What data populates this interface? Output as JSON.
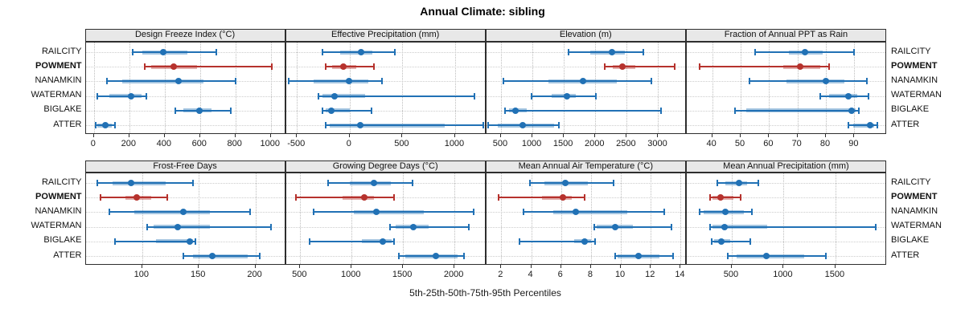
{
  "meta": {
    "title": "Annual Climate: sibling",
    "xlabel": "5th-25th-50th-75th-95th Percentiles"
  },
  "colors": {
    "blue": "#2171b5",
    "blue_band": "rgba(33,113,181,0.40)",
    "red": "#b6322d",
    "red_band": "rgba(182,50,45,0.40)"
  },
  "sites": [
    "RAILCITY",
    "POWMENT",
    "NANAMKIN",
    "WATERMAN",
    "BIGLAKE",
    "ATTER"
  ],
  "highlight_site": "POWMENT",
  "percentile_labels": [
    "5th",
    "25th",
    "50th",
    "75th",
    "95th"
  ],
  "chart_data": {
    "type": "dotplot",
    "title": "Annual Climate: sibling",
    "xlabel": "5th-25th-50th-75th-95th Percentiles",
    "legend_position": "none",
    "grid": "dotted",
    "categories": [
      "RAILCITY",
      "POWMENT",
      "NANAMKIN",
      "WATERMAN",
      "BIGLAKE",
      "ATTER"
    ],
    "panels": [
      {
        "title": "Design Freeze Index (°C)",
        "row": 0,
        "col": 0,
        "xlim": [
          -47,
          1086
        ],
        "ticks": [
          0,
          200,
          400,
          600,
          800,
          1000
        ],
        "values": {
          "RAILCITY": [
            220,
            275,
            390,
            530,
            690
          ],
          "POWMENT": [
            285,
            325,
            450,
            585,
            1005
          ],
          "NANAMKIN": [
            75,
            160,
            480,
            620,
            800
          ],
          "WATERMAN": [
            18,
            86,
            210,
            268,
            295
          ],
          "BIGLAKE": [
            460,
            505,
            595,
            665,
            775
          ],
          "ATTER": [
            10,
            18,
            63,
            101,
            121
          ]
        }
      },
      {
        "title": "Effective Precipitation (mm)",
        "row": 0,
        "col": 1,
        "xlim": [
          -604,
          1296
        ],
        "ticks": [
          -500,
          0,
          500,
          1000
        ],
        "values": {
          "RAILCITY": [
            -255,
            -90,
            110,
            215,
            430
          ],
          "POWMENT": [
            -225,
            -165,
            -60,
            65,
            230
          ],
          "NANAMKIN": [
            -580,
            -345,
            -10,
            180,
            310
          ],
          "WATERMAN": [
            -295,
            -255,
            -140,
            150,
            1180
          ],
          "BIGLAKE": [
            -255,
            -230,
            -175,
            0,
            210
          ],
          "ATTER": [
            -230,
            -190,
            100,
            900,
            1270
          ]
        }
      },
      {
        "title": "Elevation (m)",
        "row": 0,
        "col": 2,
        "xlim": [
          267,
          3453
        ],
        "ticks": [
          500,
          1000,
          1500,
          2000,
          2500,
          3000
        ],
        "values": {
          "RAILCITY": [
            1580,
            1920,
            2260,
            2465,
            2765
          ],
          "POWMENT": [
            2155,
            2280,
            2430,
            2640,
            3265
          ],
          "NANAMKIN": [
            540,
            1250,
            1800,
            2340,
            2890
          ],
          "WATERMAN": [
            990,
            1310,
            1545,
            1695,
            2015
          ],
          "BIGLAKE": [
            565,
            630,
            735,
            905,
            3040
          ],
          "ATTER": [
            300,
            455,
            840,
            1350,
            1420
          ]
        }
      },
      {
        "title": "Fraction of Annual PPT as Rain",
        "row": 0,
        "col": 3,
        "xlim": [
          31,
          101.5
        ],
        "ticks": [
          40,
          50,
          60,
          70,
          80,
          90
        ],
        "values": {
          "RAILCITY": [
            55,
            67,
            72.5,
            79,
            90
          ],
          "POWMENT": [
            35.5,
            65,
            71,
            78,
            81
          ],
          "NANAMKIN": [
            53,
            66,
            80,
            86.5,
            94.5
          ],
          "WATERMAN": [
            78,
            81,
            88,
            91,
            95
          ],
          "BIGLAKE": [
            48,
            52,
            89,
            90.5,
            91.5
          ],
          "ATTER": [
            88,
            89.5,
            95.5,
            97,
            98
          ]
        }
      },
      {
        "title": "Frost-Free Days",
        "row": 1,
        "col": 0,
        "xlim": [
          50,
          227
        ],
        "ticks": [
          100,
          150,
          200
        ],
        "values": {
          "RAILCITY": [
            60,
            74,
            90,
            121,
            145
          ],
          "POWMENT": [
            63,
            85,
            95,
            108,
            122
          ],
          "NANAMKIN": [
            71,
            93,
            136,
            160,
            195
          ],
          "WATERMAN": [
            104,
            110,
            131,
            160,
            214
          ],
          "BIGLAKE": [
            76,
            112,
            142,
            145,
            147
          ],
          "ATTER": [
            136,
            145,
            162,
            193,
            204
          ]
        }
      },
      {
        "title": "Growing Degree Days (°C)",
        "row": 1,
        "col": 1,
        "xlim": [
          362,
          2310
        ],
        "ticks": [
          500,
          1000,
          1500,
          2000
        ],
        "values": {
          "RAILCITY": [
            770,
            980,
            1220,
            1380,
            1590
          ],
          "POWMENT": [
            455,
            915,
            1120,
            1220,
            1410
          ],
          "NANAMKIN": [
            630,
            1020,
            1240,
            1700,
            2190
          ],
          "WATERMAN": [
            1370,
            1430,
            1600,
            1750,
            2140
          ],
          "BIGLAKE": [
            590,
            1100,
            1300,
            1390,
            1415
          ],
          "ATTER": [
            1460,
            1520,
            1820,
            2030,
            2090
          ]
        }
      },
      {
        "title": "Mean Annual Air Temperature (°C)",
        "row": 1,
        "col": 2,
        "xlim": [
          1,
          14.4
        ],
        "ticks": [
          2,
          4,
          6,
          8,
          10,
          12,
          14
        ],
        "values": {
          "RAILCITY": [
            3.9,
            4.9,
            6.3,
            7.8,
            9.5
          ],
          "POWMENT": [
            1.8,
            4.7,
            6.1,
            6.7,
            7.6
          ],
          "NANAMKIN": [
            3.5,
            5.5,
            7.0,
            10.4,
            12.9
          ],
          "WATERMAN": [
            8.2,
            8.4,
            9.6,
            10.8,
            13.4
          ],
          "BIGLAKE": [
            3.2,
            6.9,
            7.6,
            8.0,
            8.3
          ],
          "ATTER": [
            9.6,
            9.8,
            11.2,
            12.6,
            13.5
          ]
        }
      },
      {
        "title": "Mean Annual Precipitation (mm)",
        "row": 1,
        "col": 3,
        "xlim": [
          65,
          1997
        ],
        "ticks": [
          500,
          1000,
          1500
        ],
        "values": {
          "RAILCITY": [
            360,
            440,
            570,
            650,
            760
          ],
          "POWMENT": [
            290,
            315,
            390,
            515,
            585
          ],
          "NANAMKIN": [
            190,
            230,
            435,
            615,
            695
          ],
          "WATERMAN": [
            293,
            318,
            428,
            840,
            1890
          ],
          "BIGLAKE": [
            306,
            330,
            396,
            487,
            676
          ],
          "ATTER": [
            460,
            550,
            830,
            1200,
            1410
          ]
        }
      }
    ]
  }
}
